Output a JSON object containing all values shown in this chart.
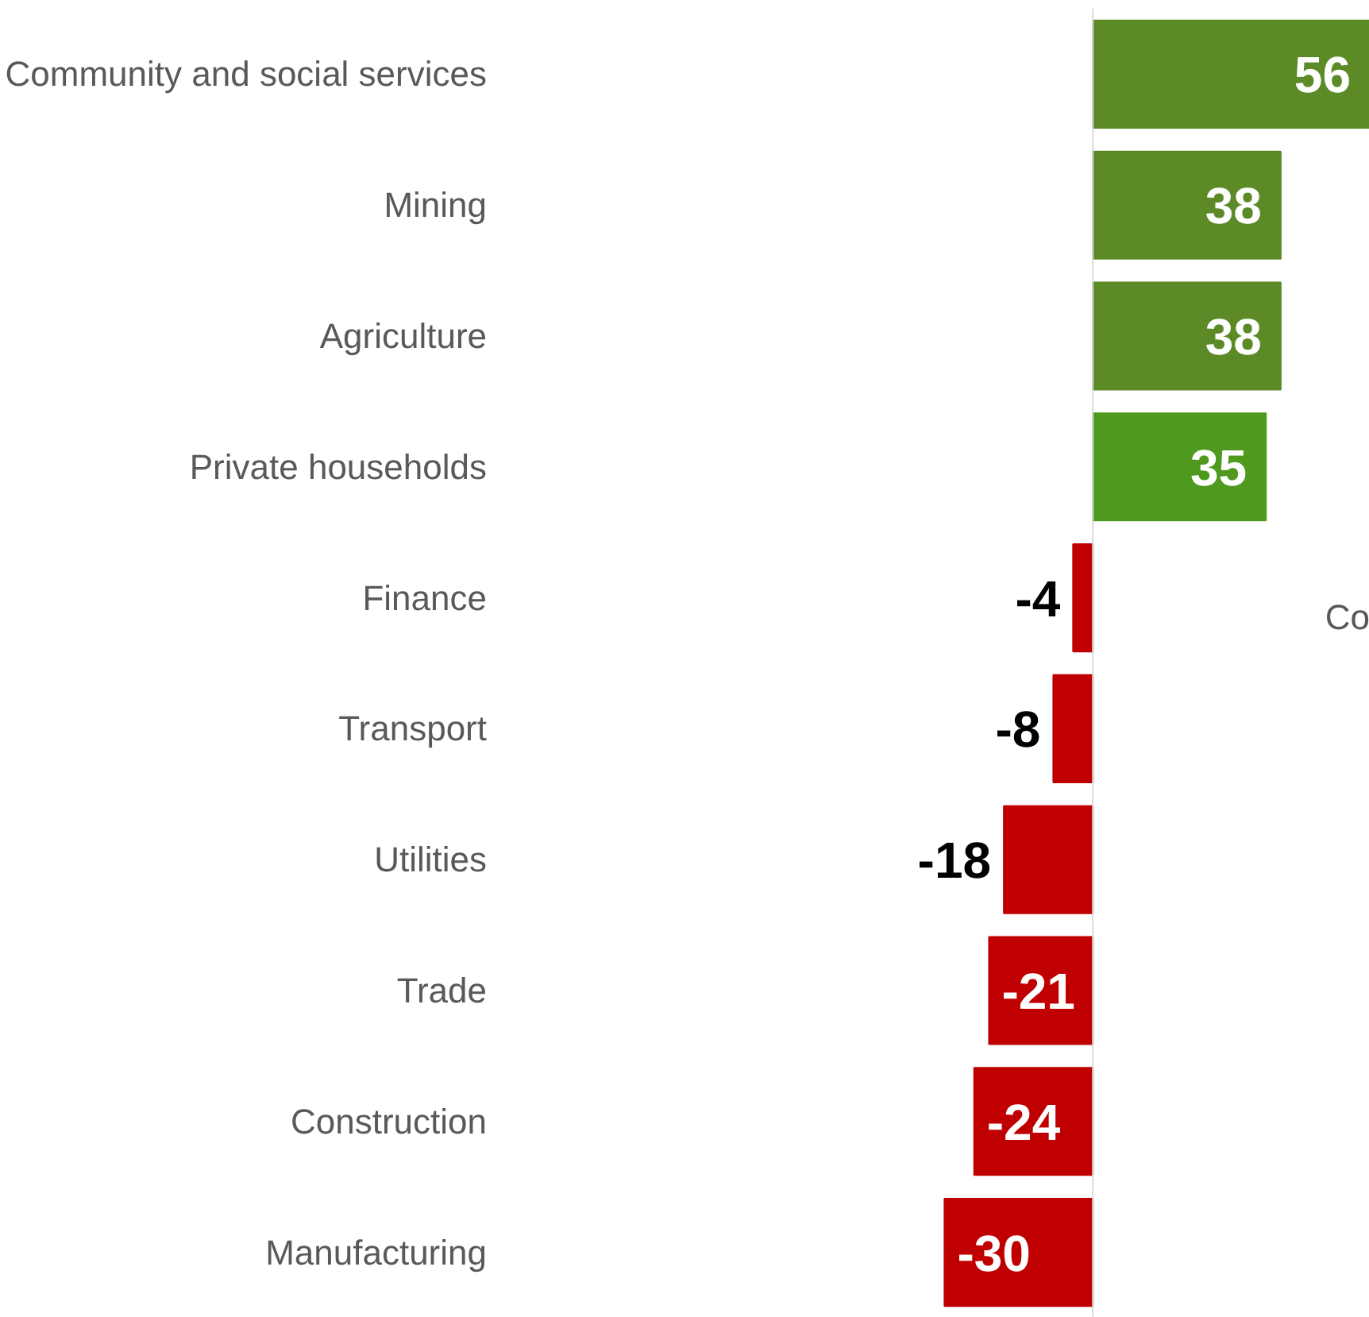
{
  "chart_data": {
    "type": "bar",
    "orientation": "horizontal",
    "data_labels": true,
    "categories": [
      "Community and social services",
      "Mining",
      "Agriculture",
      "Private households",
      "Finance",
      "Transport",
      "Utilities",
      "Trade",
      "Construction",
      "Manufacturing"
    ],
    "values": [
      56,
      38,
      38,
      35,
      -4,
      -8,
      -18,
      -21,
      -24,
      -30
    ],
    "colors": [
      "#5b8a27",
      "#5b8a27",
      "#5b8a27",
      "#4f9a1e",
      "#c00000",
      "#c00000",
      "#c00000",
      "#c00000",
      "#c00000",
      "#c00000"
    ],
    "annotations": [
      "Co"
    ]
  }
}
